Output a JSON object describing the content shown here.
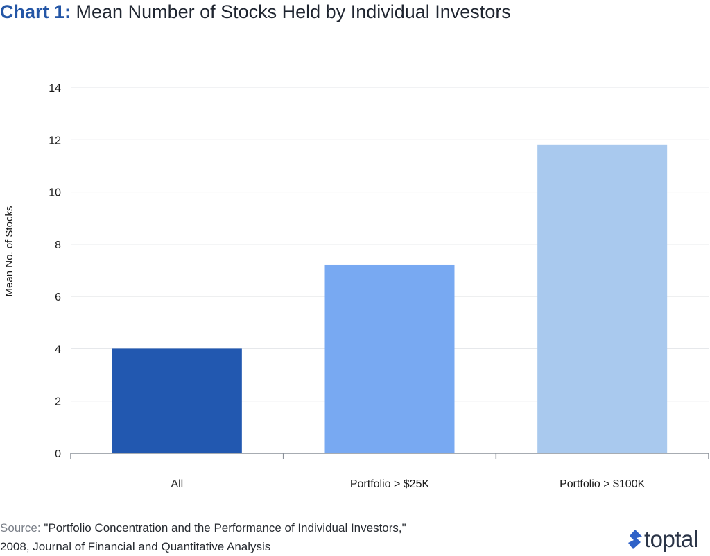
{
  "title": {
    "prefix": "Chart 1:",
    "text": "Mean Number of Stocks Held by Individual Investors"
  },
  "chart_data": {
    "type": "bar",
    "categories": [
      "All",
      "Portfolio > $25K",
      "Portfolio > $100K"
    ],
    "values": [
      4.0,
      7.2,
      11.8
    ],
    "colors": [
      "#2258b0",
      "#78a9f2",
      "#a9c9ee"
    ],
    "title": "Mean Number of Stocks Held by Individual Investors",
    "xlabel": "",
    "ylabel": "Mean No. of Stocks",
    "ylim": [
      0,
      14
    ],
    "yticks": [
      0,
      2,
      4,
      6,
      8,
      10,
      12,
      14
    ],
    "grid": true
  },
  "source": {
    "label": "Source:",
    "line1": "\"Portfolio Concentration and the Performance of Individual Investors,\"",
    "line2": "2008, Journal of Financial and Quantitative Analysis"
  },
  "brand": {
    "name": "toptal",
    "icon": "toptal-logo-icon",
    "color": "#2f62c8"
  }
}
